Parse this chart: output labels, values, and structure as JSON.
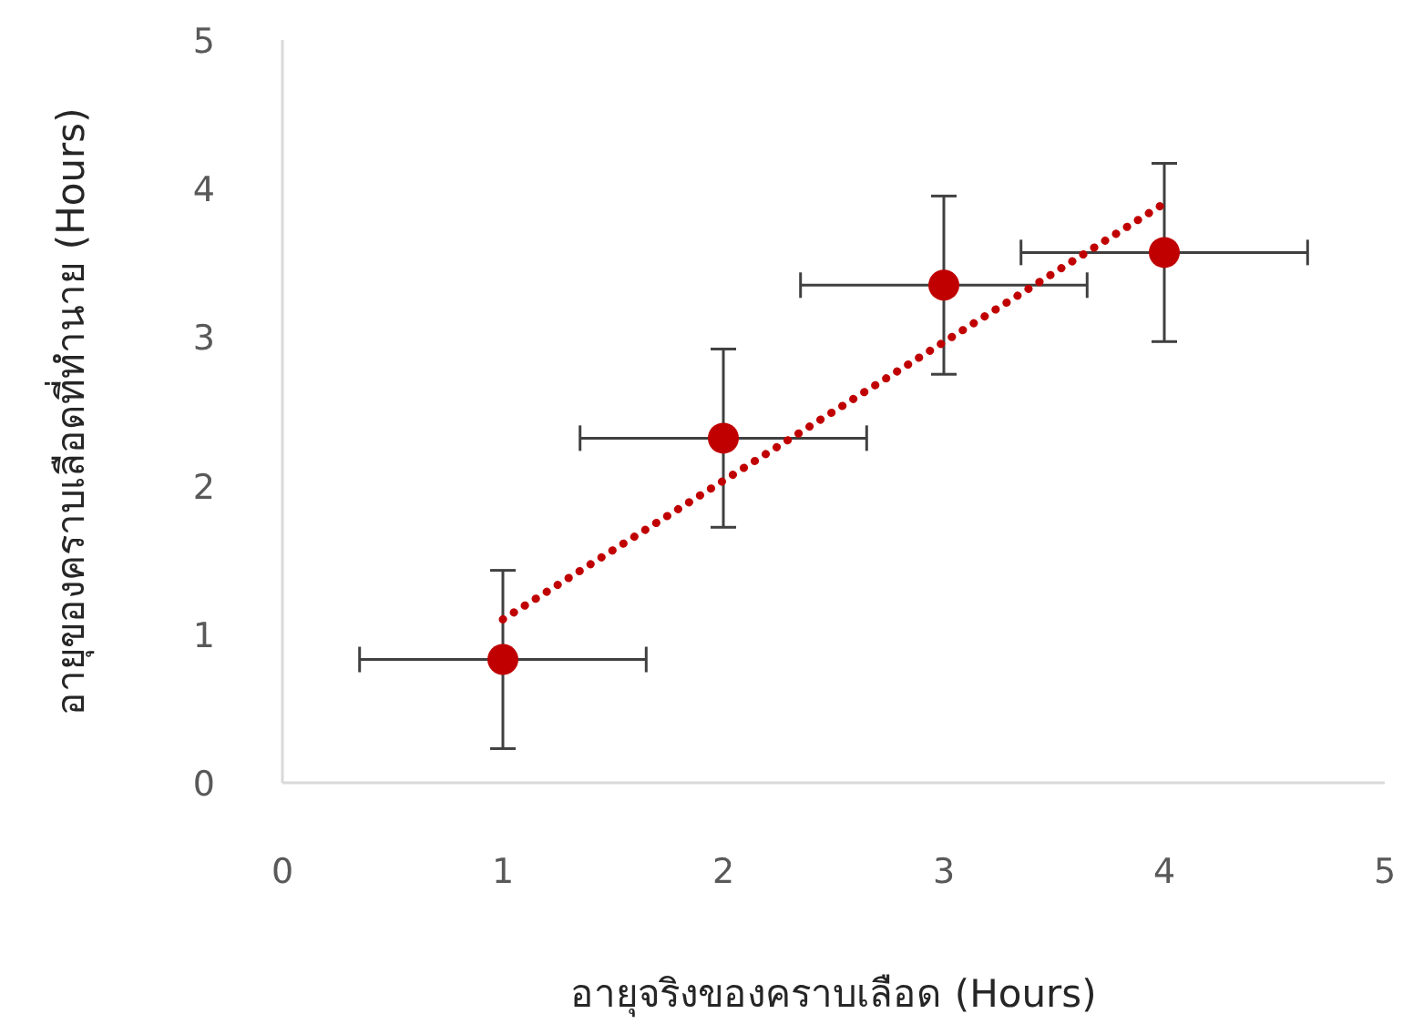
{
  "chart_data": {
    "type": "scatter",
    "xlabel": "อายุจริงของคราบเลือด (Hours)",
    "ylabel": "อายุของคราบเลือดที่ทำนาย (Hours)",
    "xlim": [
      0,
      5
    ],
    "ylim": [
      0,
      5
    ],
    "xticks": [
      0,
      1,
      2,
      3,
      4,
      5
    ],
    "yticks": [
      0,
      1,
      2,
      3,
      4,
      5
    ],
    "series": [
      {
        "marker": "circle",
        "color": "#c00000",
        "x": [
          1,
          2,
          3,
          4
        ],
        "values": [
          0.83,
          2.32,
          3.35,
          3.57
        ],
        "errors": [
          0.6,
          0.6,
          0.6,
          0.6
        ],
        "xerrors": [
          0.65,
          0.65,
          0.65,
          0.65
        ]
      },
      {
        "type": "line",
        "color": "#c00000",
        "x": [
          1,
          4
        ],
        "values": [
          1.1,
          3.9
        ],
        "line_style": "dotted"
      }
    ]
  }
}
